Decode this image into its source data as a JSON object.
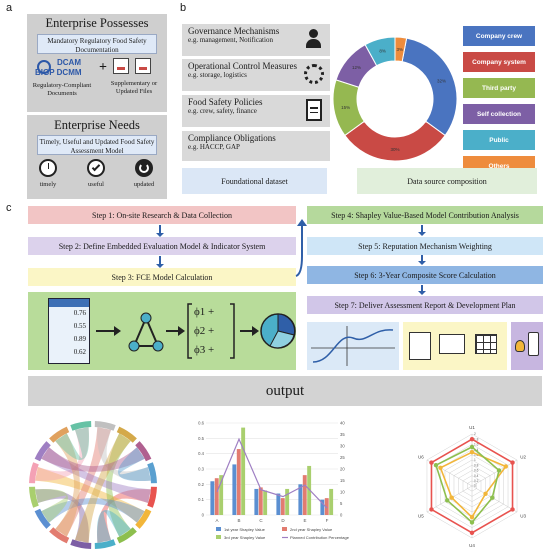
{
  "panels": {
    "a": "a",
    "b": "b",
    "c": "c"
  },
  "enterprise_possesses": {
    "title": "Enterprise Possesses",
    "mandatory": "Mandatory Regulatory Food Safety Documentation",
    "doc_left": "Regulatory-Compliant Documents",
    "doc_right": "Supplementary or Updated Files",
    "logo_top": "DCAM",
    "logo_bottom": "BIGP DCMM",
    "plus": "+"
  },
  "enterprise_needs": {
    "title": "Enterprise Needs",
    "desc": "Timely, Useful and Updated Food Safety Assessment Model",
    "icons": [
      "timely",
      "useful",
      "updated"
    ]
  },
  "facts": [
    {
      "title": "Governance Mechanisms",
      "eg": "e.g. management, Notification",
      "icon": "manager-gear-icon"
    },
    {
      "title": "Operational Control Measures",
      "eg": "e.g. storage, logistics",
      "icon": "gear-wrench-icon"
    },
    {
      "title": "Food Safety Policies",
      "eg": "e.g. crew, safety, finance",
      "icon": "document-icon"
    },
    {
      "title": "Compliance Obligations",
      "eg": "e.g. HACCP, GAP",
      "icon": ""
    }
  ],
  "chart_data": {
    "type": "pie",
    "donut": true,
    "categories": [
      "Company crew",
      "Company system",
      "Third party",
      "Self collection",
      "Public",
      "Others"
    ],
    "values": [
      32,
      30,
      15,
      12,
      8,
      3
    ],
    "labels": [
      "32%",
      "30%",
      "15%",
      "12%",
      "8%",
      "3%"
    ],
    "colors": [
      "#4a74c0",
      "#c94a45",
      "#95b851",
      "#7d5fa5",
      "#4bafc9",
      "#ee8c3d"
    ],
    "legend_placement": "right"
  },
  "captions": {
    "foundational": "Foundational dataset",
    "source": "Data source composition"
  },
  "steps": {
    "s1": "Step 1: On-site Research & Data Collection",
    "s2": "Step 2: Define Embedded Evaluation Model & Indicator System",
    "s3": "Step 3: FCE Model Calculation",
    "s4": "Step 4: Shapley Value-Based Model Contribution Analysis",
    "s5": "Step 5: Reputation Mechanism Weighting",
    "s6": "Step 6: 3-Year Composite Score Calculation",
    "s7": "Step 7: Deliver Assessment Report & Development Plan"
  },
  "fce": {
    "values": [
      "0.76",
      "0.55",
      "0.89",
      "0.62"
    ],
    "phis": [
      "ϕ1 +",
      "ϕ2 +",
      "ϕ3 +"
    ]
  },
  "output": {
    "title": "output"
  },
  "bar_chart": {
    "type": "bar",
    "categories": [
      "A",
      "B",
      "C",
      "D",
      "E",
      "F"
    ],
    "series": [
      {
        "name": "1st year Shapley Value",
        "values": [
          0.22,
          0.33,
          0.17,
          0.14,
          0.2,
          0.1
        ],
        "color": "#5b8fd1"
      },
      {
        "name": "2nd year Shapley Value",
        "values": [
          0.24,
          0.43,
          0.18,
          0.11,
          0.26,
          0.11
        ],
        "color": "#e27c70"
      },
      {
        "name": "3rd year Shapley Value",
        "values": [
          0.26,
          0.57,
          0.16,
          0.17,
          0.32,
          0.17
        ],
        "color": "#a9cf6e"
      },
      {
        "name": "Planned Contribution Percentage",
        "values": [
          10,
          33,
          11,
          8,
          13,
          3
        ],
        "color": "#9f7fc3",
        "kind": "line"
      }
    ],
    "y_left_ticks": [
      "0",
      "0.1",
      "0.2",
      "0.3",
      "0.4",
      "0.5",
      "0.6"
    ],
    "y_right_ticks": [
      "0",
      "5",
      "10",
      "15",
      "20",
      "25",
      "30",
      "35",
      "40"
    ],
    "ylim": [
      0,
      0.6
    ],
    "y2lim": [
      0,
      40
    ]
  },
  "radar_chart": {
    "type": "radar",
    "axes": [
      "U1",
      "U2",
      "U3",
      "U4",
      "U5",
      "U6"
    ],
    "ticks": [
      "0",
      "0.2",
      "0.4",
      "0.6",
      "0.8",
      "1",
      "1.2",
      "1.4",
      "1.6",
      "1.8",
      "2"
    ],
    "series": [
      {
        "values": [
          1.8,
          1.8,
          1.8,
          1.8,
          1.8,
          1.8
        ],
        "color": "#e8534f"
      },
      {
        "values": [
          1.3,
          1.5,
          0.6,
          1.2,
          0.9,
          1.4
        ],
        "color": "#f2b63a"
      },
      {
        "values": [
          1.5,
          1.2,
          0.9,
          1.4,
          1.1,
          1.6
        ],
        "color": "#8dbf4e"
      }
    ]
  },
  "radar_values": {
    "max": 2
  }
}
